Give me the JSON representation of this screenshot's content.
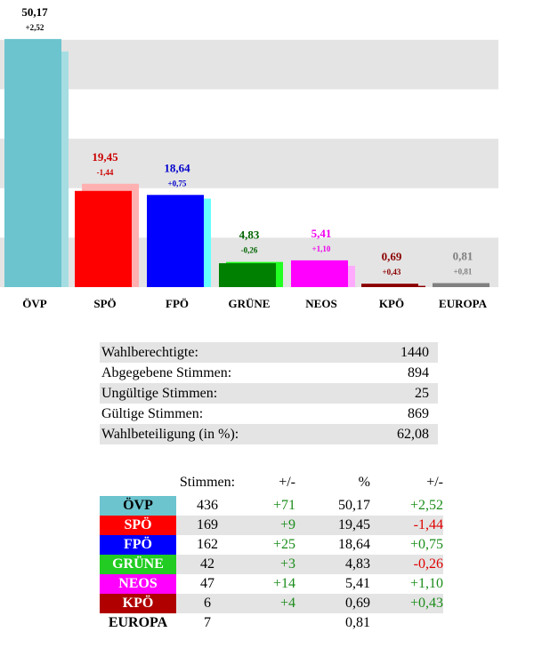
{
  "colors": {
    "pos": "#1a8c1a",
    "neg": "#e00000",
    "grid": "#e4e4e4"
  },
  "chart_data": {
    "type": "bar",
    "ylim": [
      0,
      55
    ],
    "grid": "horizontal bands",
    "categories": [
      "ÖVP",
      "SPÖ",
      "FPÖ",
      "GRÜNE",
      "NEOS",
      "KPÖ",
      "EUROPA"
    ],
    "series": [
      {
        "values": [
          50.17,
          19.45,
          18.64,
          4.83,
          5.41,
          0.69,
          0.81
        ]
      },
      {
        "values": [
          47.65,
          20.89,
          17.89,
          5.09,
          4.31,
          0.26,
          0
        ]
      }
    ],
    "value_labels": [
      "50,17",
      "19,45",
      "18,64",
      "4,83",
      "5,41",
      "0,69",
      "0,81"
    ],
    "change_labels": [
      "+2,52",
      "-1,44",
      "+0,75",
      "-0,26",
      "+1,10",
      "+0,43",
      "+0,81"
    ],
    "bar_colors": [
      "#6cc4ce",
      "#ff0000",
      "#0000ff",
      "#008000",
      "#ff00ff",
      "#8b0000",
      "#808080"
    ],
    "prev_colors": [
      "#a6dde2",
      "#ffb0b0",
      "#66ffff",
      "#22ff22",
      "#ffaaff",
      "#8b0000",
      "#808080"
    ],
    "label_colors": [
      "#000000",
      "#cc0000",
      "#0000cc",
      "#006400",
      "#ee00ee",
      "#8b0000",
      "#808080"
    ]
  },
  "info": [
    {
      "label": "Wahlberechtigte:",
      "value": "1440"
    },
    {
      "label": "Abgegebene Stimmen:",
      "value": "894"
    },
    {
      "label": "Ungültige Stimmen:",
      "value": "25"
    },
    {
      "label": "Gültige Stimmen:",
      "value": "869"
    },
    {
      "label": "Wahlbeteiligung (in %):",
      "value": "62,08"
    }
  ],
  "results": {
    "headers": {
      "party": "",
      "votes": "Stimmen:",
      "votes_diff": "+/-",
      "pct": "%",
      "pct_diff": "+/-"
    },
    "rows": [
      {
        "party": "ÖVP",
        "color": "#6cc4ce",
        "text_color": "#000000",
        "votes": "436",
        "votes_diff": "+71",
        "votes_diff_sign": "pos",
        "pct": "50,17",
        "pct_diff": "+2,52",
        "pct_diff_sign": "pos"
      },
      {
        "party": "SPÖ",
        "color": "#ff0000",
        "text_color": "#ffffff",
        "votes": "169",
        "votes_diff": "+9",
        "votes_diff_sign": "pos",
        "pct": "19,45",
        "pct_diff": "-1,44",
        "pct_diff_sign": "neg"
      },
      {
        "party": "FPÖ",
        "color": "#0000ff",
        "text_color": "#ffffff",
        "votes": "162",
        "votes_diff": "+25",
        "votes_diff_sign": "pos",
        "pct": "18,64",
        "pct_diff": "+0,75",
        "pct_diff_sign": "pos"
      },
      {
        "party": "GRÜNE",
        "color": "#22cc22",
        "text_color": "#ffffff",
        "votes": "42",
        "votes_diff": "+3",
        "votes_diff_sign": "pos",
        "pct": "4,83",
        "pct_diff": "-0,26",
        "pct_diff_sign": "neg"
      },
      {
        "party": "NEOS",
        "color": "#ff00ff",
        "text_color": "#ffffff",
        "votes": "47",
        "votes_diff": "+14",
        "votes_diff_sign": "pos",
        "pct": "5,41",
        "pct_diff": "+1,10",
        "pct_diff_sign": "pos"
      },
      {
        "party": "KPÖ",
        "color": "#b00000",
        "text_color": "#ffffff",
        "votes": "6",
        "votes_diff": "+4",
        "votes_diff_sign": "pos",
        "pct": "0,69",
        "pct_diff": "+0,43",
        "pct_diff_sign": "pos"
      },
      {
        "party": "EUROPA",
        "color": "#ffffff",
        "text_color": "#000000",
        "votes": "7",
        "votes_diff": "",
        "votes_diff_sign": "pos",
        "pct": "0,81",
        "pct_diff": "",
        "pct_diff_sign": "pos"
      }
    ]
  }
}
